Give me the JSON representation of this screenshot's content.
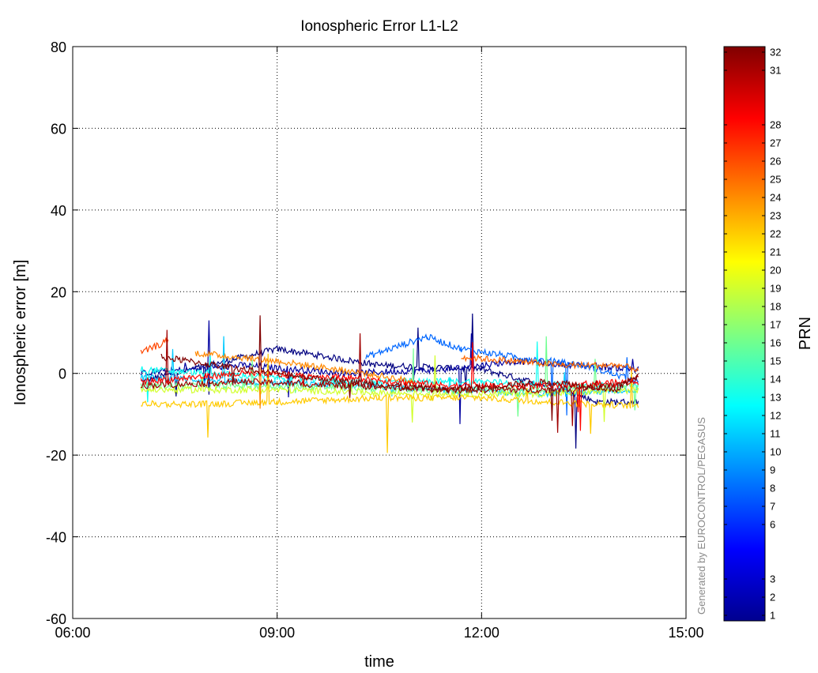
{
  "chart_data": {
    "type": "line",
    "title": "Ionospheric Error L1-L2",
    "xlabel": "time",
    "ylabel": "Ionospheric error [m]",
    "x_ticks": [
      "06:00",
      "09:00",
      "12:00",
      "15:00"
    ],
    "x_range_hours": [
      6,
      15
    ],
    "ylim": [
      -60,
      80
    ],
    "y_ticks": [
      80,
      60,
      40,
      20,
      0,
      -20,
      -40,
      -60
    ],
    "grid": true,
    "colorbar": {
      "label": "PRN",
      "range": [
        1,
        32
      ],
      "ticks": [
        32,
        31,
        28,
        27,
        26,
        25,
        24,
        23,
        22,
        21,
        20,
        19,
        18,
        17,
        16,
        15,
        14,
        13,
        12,
        11,
        10,
        9,
        8,
        7,
        6,
        3,
        2,
        1
      ],
      "colormap": "jet"
    },
    "series": [
      {
        "prn": 1,
        "values": [
          [
            7.0,
            -2
          ],
          [
            9.0,
            6
          ],
          [
            10.5,
            2
          ],
          [
            12.0,
            1
          ],
          [
            13.2,
            -4
          ],
          [
            13.7,
            -7
          ],
          [
            14.3,
            -7
          ]
        ]
      },
      {
        "prn": 2,
        "values": [
          [
            7.0,
            0
          ],
          [
            8.5,
            2
          ],
          [
            10.0,
            0
          ],
          [
            11.5,
            1
          ],
          [
            12.5,
            3
          ],
          [
            14.3,
            1
          ]
        ]
      },
      {
        "prn": 8,
        "values": [
          [
            10.3,
            4
          ],
          [
            11.2,
            9
          ],
          [
            11.7,
            6
          ],
          [
            12.5,
            4
          ],
          [
            13.5,
            2
          ],
          [
            14.3,
            -2
          ]
        ]
      },
      {
        "prn": 11,
        "values": [
          [
            7.0,
            -1
          ],
          [
            8.5,
            -2
          ],
          [
            10.0,
            -3
          ],
          [
            11.5,
            -4
          ],
          [
            13.0,
            -5
          ],
          [
            14.3,
            -4
          ]
        ]
      },
      {
        "prn": 13,
        "values": [
          [
            7.0,
            1
          ],
          [
            8.0,
            0
          ],
          [
            9.0,
            -1
          ],
          [
            10.0,
            -2
          ],
          [
            11.0,
            -2
          ],
          [
            12.0,
            -2
          ],
          [
            13.5,
            -3
          ],
          [
            14.3,
            -3
          ]
        ]
      },
      {
        "prn": 16,
        "values": [
          [
            7.0,
            -3
          ],
          [
            9.0,
            -3
          ],
          [
            11.0,
            -4
          ],
          [
            13.0,
            -4
          ],
          [
            14.3,
            -3
          ]
        ]
      },
      {
        "prn": 19,
        "values": [
          [
            7.0,
            -4
          ],
          [
            9.0,
            -4
          ],
          [
            11.0,
            -5
          ],
          [
            13.0,
            -5
          ],
          [
            14.3,
            -4
          ]
        ]
      },
      {
        "prn": 22,
        "values": [
          [
            7.0,
            -7.5
          ],
          [
            8.0,
            -7.5
          ],
          [
            9.0,
            -7
          ],
          [
            10.5,
            -6
          ],
          [
            12.0,
            -6
          ],
          [
            13.0,
            -7
          ],
          [
            14.3,
            -8
          ]
        ]
      },
      {
        "prn": 24,
        "values": [
          [
            7.8,
            5
          ],
          [
            9.0,
            3
          ],
          [
            10.3,
            0
          ],
          [
            11.0,
            -2
          ]
        ]
      },
      {
        "prn": 25,
        "values": [
          [
            11.7,
            4
          ],
          [
            12.5,
            3
          ],
          [
            13.2,
            2
          ],
          [
            14.0,
            2
          ],
          [
            14.3,
            1
          ]
        ]
      },
      {
        "prn": 26,
        "values": [
          [
            7.0,
            5
          ],
          [
            7.4,
            8
          ]
        ]
      },
      {
        "prn": 28,
        "values": [
          [
            7.0,
            -2
          ],
          [
            8.5,
            0
          ],
          [
            10.0,
            -1
          ],
          [
            11.5,
            -3
          ],
          [
            13.0,
            -3
          ],
          [
            14.3,
            -2
          ]
        ]
      },
      {
        "prn": 31,
        "values": [
          [
            7.0,
            -3
          ],
          [
            8.5,
            -2
          ],
          [
            10.0,
            -3
          ],
          [
            11.5,
            -4
          ],
          [
            13.0,
            -4
          ],
          [
            14.0,
            -3
          ],
          [
            14.3,
            -1
          ]
        ]
      },
      {
        "prn": 32,
        "values": [
          [
            7.3,
            4
          ],
          [
            8.5,
            1
          ],
          [
            10.0,
            -2
          ],
          [
            11.5,
            -4
          ],
          [
            13.0,
            -2
          ],
          [
            14.0,
            -4
          ],
          [
            14.3,
            0
          ]
        ]
      }
    ]
  },
  "watermark": "Generated by EUROCONTROL/PEGASUS"
}
